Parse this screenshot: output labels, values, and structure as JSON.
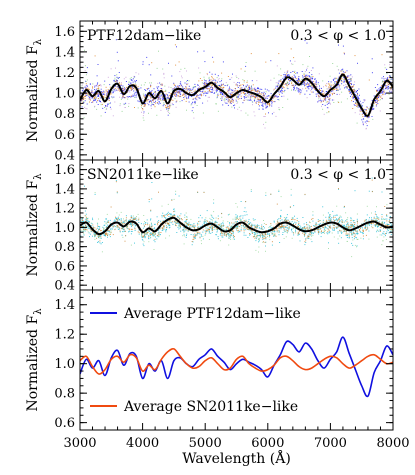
{
  "chart_data": [
    {
      "type": "scatter",
      "panel": "top",
      "title_left": "PTF12dam−like",
      "title_right": "0.3 < φ < 1.0",
      "ylabel": "Normalized F",
      "ylabel_sub": "λ",
      "xlim": [
        3000,
        8000
      ],
      "ylim": [
        0.35,
        1.7
      ],
      "yticks": [
        "0.4",
        "0.6",
        "0.8",
        "1.0",
        "1.2",
        "1.4",
        "1.6"
      ],
      "ytick_values": [
        0.4,
        0.6,
        0.8,
        1.0,
        1.2,
        1.4,
        1.6
      ],
      "series": [
        {
          "role": "average",
          "color": "#000000",
          "x": [
            3000,
            3100,
            3200,
            3300,
            3400,
            3500,
            3600,
            3700,
            3800,
            3900,
            4000,
            4100,
            4200,
            4300,
            4400,
            4500,
            4600,
            4700,
            4800,
            4900,
            5000,
            5100,
            5200,
            5300,
            5400,
            5500,
            5600,
            5700,
            5800,
            5900,
            6000,
            6100,
            6200,
            6300,
            6400,
            6500,
            6600,
            6700,
            6800,
            6900,
            7000,
            7100,
            7200,
            7300,
            7400,
            7500,
            7600,
            7700,
            7800,
            7900,
            8000
          ],
          "y": [
            0.93,
            1.03,
            0.97,
            1.02,
            0.92,
            1.04,
            1.09,
            0.99,
            1.07,
            1.05,
            0.9,
            1.0,
            0.95,
            1.02,
            0.9,
            1.02,
            1.04,
            1.0,
            0.98,
            1.03,
            1.06,
            1.1,
            1.05,
            1.01,
            0.96,
            1.0,
            1.03,
            1.01,
            0.99,
            0.96,
            0.91,
            0.99,
            1.06,
            1.15,
            1.13,
            1.08,
            1.14,
            1.1,
            1.02,
            0.97,
            1.03,
            1.08,
            1.18,
            1.07,
            0.96,
            0.85,
            0.78,
            0.94,
            1.02,
            1.12,
            1.06
          ]
        },
        {
          "role": "scatter",
          "color": "#2b2bf0"
        },
        {
          "role": "scatter",
          "color": "#e0862a"
        },
        {
          "role": "scatter",
          "color": "#8fd28f"
        },
        {
          "role": "scatter",
          "color": "#c9a0dc"
        }
      ]
    },
    {
      "type": "scatter",
      "panel": "middle",
      "title_left": "SN2011ke−like",
      "title_right": "0.3 < φ < 1.0",
      "ylabel": "Normalized F",
      "ylabel_sub": "λ",
      "xlim": [
        3000,
        8000
      ],
      "ylim": [
        0.35,
        1.7
      ],
      "yticks": [
        "0.4",
        "0.6",
        "0.8",
        "1.0",
        "1.2",
        "1.4",
        "1.6"
      ],
      "ytick_values": [
        0.4,
        0.6,
        0.8,
        1.0,
        1.2,
        1.4,
        1.6
      ],
      "series": [
        {
          "role": "average",
          "color": "#000000",
          "x": [
            3000,
            3100,
            3200,
            3300,
            3400,
            3500,
            3600,
            3700,
            3800,
            3900,
            4000,
            4100,
            4200,
            4300,
            4400,
            4500,
            4600,
            4700,
            4800,
            4900,
            5000,
            5100,
            5200,
            5300,
            5400,
            5500,
            5600,
            5700,
            5800,
            5900,
            6000,
            6100,
            6200,
            6300,
            6400,
            6500,
            6600,
            6700,
            6800,
            6900,
            7000,
            7100,
            7200,
            7300,
            7400,
            7500,
            7600,
            7700,
            7800,
            7900,
            8000
          ],
          "y": [
            1.02,
            1.05,
            0.98,
            0.93,
            0.96,
            1.03,
            1.05,
            1.01,
            1.06,
            1.04,
            0.95,
            0.99,
            0.96,
            1.03,
            1.08,
            1.1,
            1.05,
            1.0,
            0.97,
            0.98,
            1.02,
            1.04,
            1.0,
            0.96,
            0.97,
            1.03,
            1.05,
            1.0,
            0.97,
            0.95,
            0.96,
            0.99,
            1.04,
            1.05,
            1.02,
            0.98,
            0.96,
            0.97,
            1.0,
            1.03,
            1.05,
            1.04,
            1.0,
            0.97,
            0.99,
            1.02,
            1.05,
            1.06,
            1.03,
            1.0,
            1.01
          ]
        },
        {
          "role": "scatter",
          "color": "#2cc0d8"
        },
        {
          "role": "scatter",
          "color": "#d08a3a"
        },
        {
          "role": "scatter",
          "color": "#9fd9a0"
        }
      ]
    },
    {
      "type": "line",
      "panel": "bottom",
      "ylabel": "Normalized F",
      "ylabel_sub": "λ",
      "xlabel": "Wavelength (Å)",
      "xlim": [
        3000,
        8000
      ],
      "ylim": [
        0.55,
        1.5
      ],
      "xticks": [
        "3000",
        "4000",
        "5000",
        "6000",
        "7000",
        "8000"
      ],
      "xtick_values": [
        3000,
        4000,
        5000,
        6000,
        7000,
        8000
      ],
      "yticks": [
        "0.6",
        "0.8",
        "1.0",
        "1.2",
        "1.4"
      ],
      "ytick_values": [
        0.6,
        0.8,
        1.0,
        1.2,
        1.4
      ],
      "series": [
        {
          "name": "Average PTF12dam−like",
          "color": "#1010e0",
          "x": [
            3000,
            3100,
            3200,
            3300,
            3400,
            3500,
            3600,
            3700,
            3800,
            3900,
            4000,
            4100,
            4200,
            4300,
            4400,
            4500,
            4600,
            4700,
            4800,
            4900,
            5000,
            5100,
            5200,
            5300,
            5400,
            5500,
            5600,
            5700,
            5800,
            5900,
            6000,
            6100,
            6200,
            6300,
            6400,
            6500,
            6600,
            6700,
            6800,
            6900,
            7000,
            7100,
            7200,
            7300,
            7400,
            7500,
            7600,
            7700,
            7800,
            7900,
            8000
          ],
          "y": [
            0.93,
            1.03,
            0.97,
            1.02,
            0.92,
            1.04,
            1.09,
            0.99,
            1.07,
            1.05,
            0.9,
            1.0,
            0.95,
            1.02,
            0.9,
            1.02,
            1.04,
            1.0,
            0.98,
            1.03,
            1.06,
            1.1,
            1.05,
            1.01,
            0.96,
            1.0,
            1.03,
            1.01,
            0.99,
            0.96,
            0.91,
            0.99,
            1.06,
            1.15,
            1.13,
            1.08,
            1.14,
            1.1,
            1.02,
            0.97,
            1.03,
            1.08,
            1.18,
            1.07,
            0.96,
            0.85,
            0.78,
            0.94,
            1.02,
            1.12,
            1.06
          ]
        },
        {
          "name": "Average SN2011ke−like",
          "color": "#f04a10",
          "x": [
            3000,
            3100,
            3200,
            3300,
            3400,
            3500,
            3600,
            3700,
            3800,
            3900,
            4000,
            4100,
            4200,
            4300,
            4400,
            4500,
            4600,
            4700,
            4800,
            4900,
            5000,
            5100,
            5200,
            5300,
            5400,
            5500,
            5600,
            5700,
            5800,
            5900,
            6000,
            6100,
            6200,
            6300,
            6400,
            6500,
            6600,
            6700,
            6800,
            6900,
            7000,
            7100,
            7200,
            7300,
            7400,
            7500,
            7600,
            7700,
            7800,
            7900,
            8000
          ],
          "y": [
            1.02,
            1.05,
            0.98,
            0.93,
            0.96,
            1.03,
            1.05,
            1.01,
            1.06,
            1.04,
            0.95,
            0.99,
            0.96,
            1.03,
            1.08,
            1.1,
            1.05,
            1.0,
            0.97,
            0.98,
            1.02,
            1.04,
            1.0,
            0.96,
            0.97,
            1.03,
            1.05,
            1.0,
            0.97,
            0.95,
            0.96,
            0.99,
            1.04,
            1.05,
            1.02,
            0.98,
            0.96,
            0.97,
            1.0,
            1.03,
            1.05,
            1.04,
            1.0,
            0.97,
            0.99,
            1.02,
            1.05,
            1.06,
            1.03,
            1.0,
            1.01
          ]
        }
      ]
    }
  ]
}
